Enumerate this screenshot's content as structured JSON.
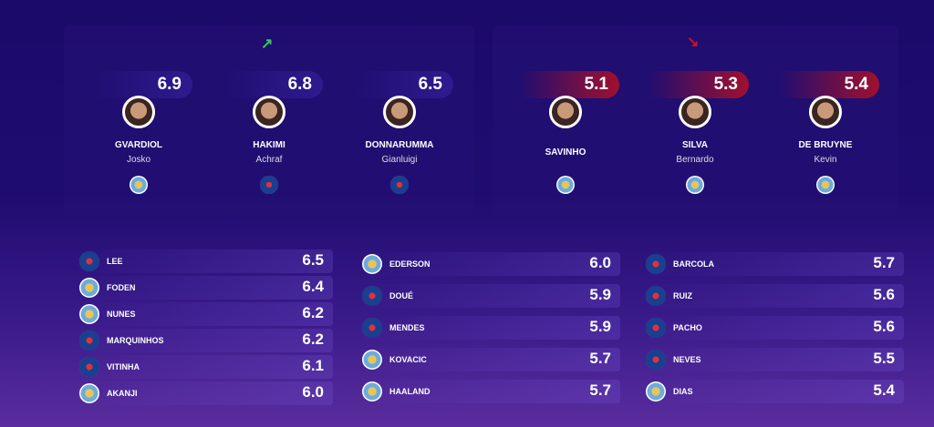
{
  "top": {
    "up_trend_icon": "trend-up-icon",
    "down_trend_icon": "trend-down-icon",
    "colors": {
      "up": "#2ecc55",
      "down": "#d0102a"
    },
    "best": [
      {
        "score": "6.9",
        "surname": "GVARDIOL",
        "first": "Josko",
        "club": "mci"
      },
      {
        "score": "6.8",
        "surname": "HAKIMI",
        "first": "Achraf",
        "club": "psg"
      },
      {
        "score": "6.5",
        "surname": "DONNARUMMA",
        "first": "Gianluigi",
        "club": "psg"
      }
    ],
    "worst": [
      {
        "score": "5.1",
        "surname": "SAVINHO",
        "first": "",
        "club": "mci"
      },
      {
        "score": "5.3",
        "surname": "SILVA",
        "first": "Bernardo",
        "club": "mci"
      },
      {
        "score": "5.4",
        "surname": "DE BRUYNE",
        "first": "Kevin",
        "club": "mci"
      }
    ]
  },
  "lists": [
    [
      {
        "name": "LEE",
        "value": "6.5",
        "club": "psg"
      },
      {
        "name": "FODEN",
        "value": "6.4",
        "club": "mci"
      },
      {
        "name": "NUNES",
        "value": "6.2",
        "club": "mci"
      },
      {
        "name": "MARQUINHOS",
        "value": "6.2",
        "club": "psg"
      },
      {
        "name": "VITINHA",
        "value": "6.1",
        "club": "psg"
      },
      {
        "name": "AKANJI",
        "value": "6.0",
        "club": "mci"
      }
    ],
    [
      {
        "name": "EDERSON",
        "value": "6.0",
        "club": "mci"
      },
      {
        "name": "DOUÉ",
        "value": "5.9",
        "club": "psg"
      },
      {
        "name": "MENDES",
        "value": "5.9",
        "club": "psg"
      },
      {
        "name": "KOVACIC",
        "value": "5.7",
        "club": "mci"
      },
      {
        "name": "HAALAND",
        "value": "5.7",
        "club": "mci"
      }
    ],
    [
      {
        "name": "BARCOLA",
        "value": "5.7",
        "club": "psg"
      },
      {
        "name": "RUIZ",
        "value": "5.6",
        "club": "psg"
      },
      {
        "name": "PACHO",
        "value": "5.6",
        "club": "psg"
      },
      {
        "name": "NEVES",
        "value": "5.5",
        "club": "psg"
      },
      {
        "name": "DIAS",
        "value": "5.4",
        "club": "mci"
      }
    ]
  ]
}
